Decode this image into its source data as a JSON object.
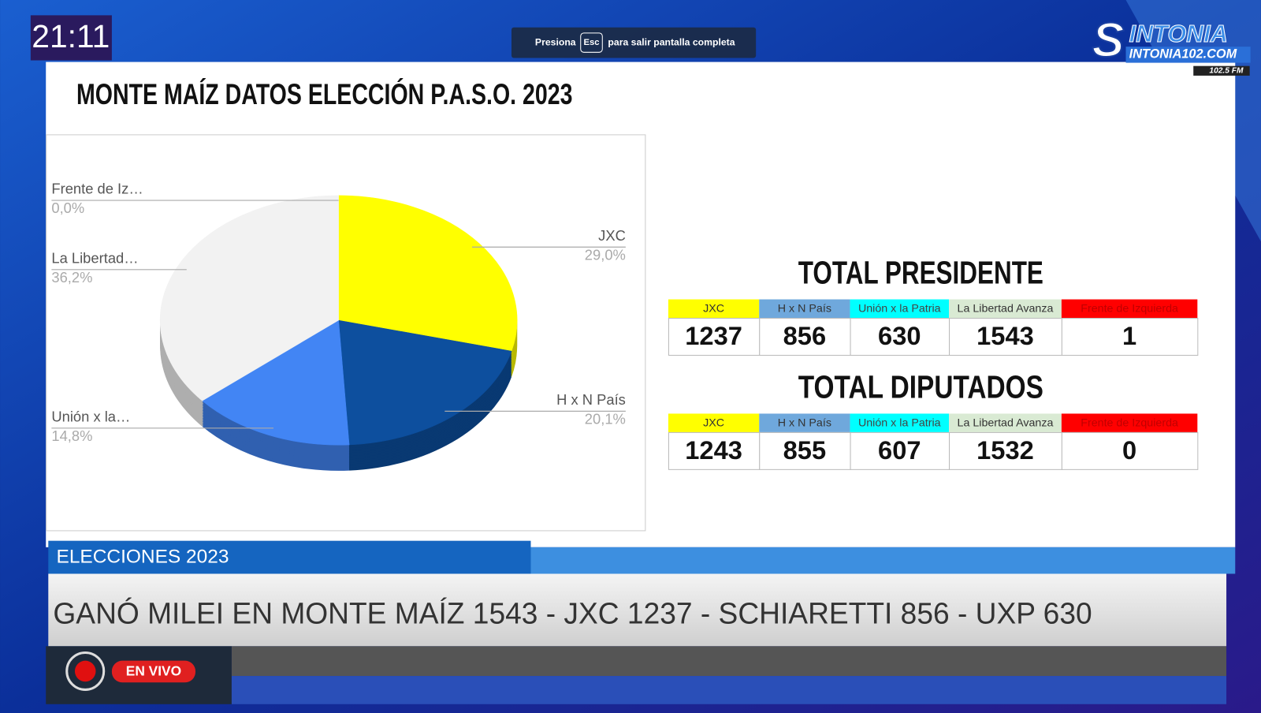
{
  "clock": "21:11",
  "fullscreen_notice": {
    "before": "Presiona",
    "key": "Esc",
    "after": "para salir pantalla completa"
  },
  "logo": {
    "initial": "S",
    "name": "INTONIA",
    "site": "INTONIA102.COM",
    "frequency": "102.5 FM"
  },
  "title": "MONTE MAÍZ DATOS ELECCIÓN P.A.S.O. 2023",
  "chart_data": {
    "type": "pie",
    "categories": [
      "JXC",
      "H x N País",
      "Unión x la…",
      "La Libertad…",
      "Frente de Iz…"
    ],
    "values": [
      29.0,
      20.1,
      14.8,
      36.2,
      0.0
    ],
    "value_labels": [
      "29,0%",
      "20,1%",
      "14,8%",
      "36,2%",
      "0,0%"
    ],
    "colors": [
      "#ffff00",
      "#0d4f9e",
      "#4285f4",
      "#f2f2f2",
      "#ff0000"
    ]
  },
  "tables": [
    {
      "title": "TOTAL PRESIDENTE",
      "headers": [
        "JXC",
        "H x N País",
        "Unión x la Patria",
        "La Libertad Avanza",
        "Frente de Izquierda"
      ],
      "header_colors": [
        "#ffff00",
        "#6fa8dc",
        "#00ffff",
        "#d9ead3",
        "#ff0000"
      ],
      "values": [
        1237,
        856,
        630,
        1543,
        1
      ]
    },
    {
      "title": "TOTAL DIPUTADOS",
      "headers": [
        "JXC",
        "H x N País",
        "Unión x la Patria",
        "La Libertad Avanza",
        "Frente de Izquierda"
      ],
      "header_colors": [
        "#ffff00",
        "#6fa8dc",
        "#00ffff",
        "#d9ead3",
        "#ff0000"
      ],
      "values": [
        1243,
        855,
        607,
        1532,
        0
      ]
    }
  ],
  "lower_third": {
    "section": "ELECCIONES 2023",
    "ticker": "GANÓ MILEI EN MONTE MAÍZ 1543 - JXC 1237 - SCHIARETTI 856 - UXP 630",
    "live": "EN VIVO"
  }
}
